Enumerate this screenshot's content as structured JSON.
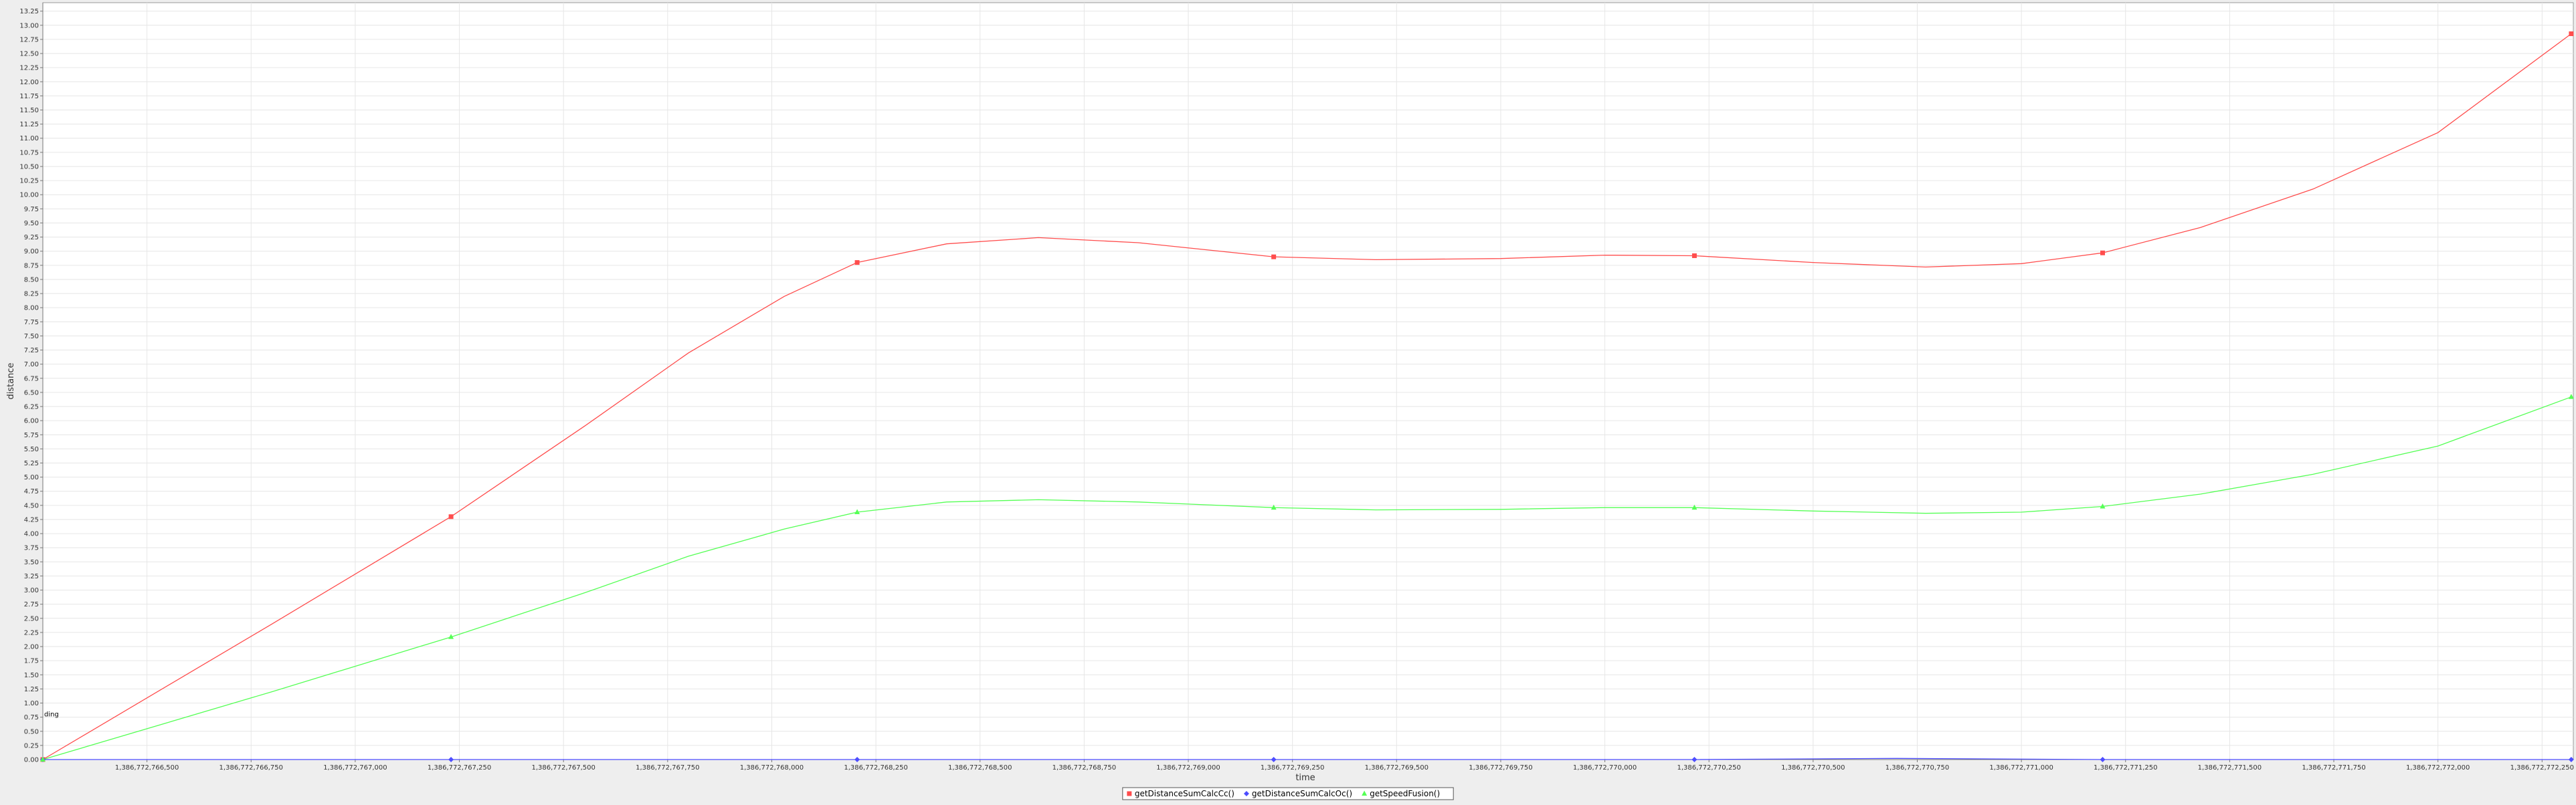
{
  "chart_data": {
    "type": "line",
    "title": "",
    "xlabel": "time",
    "ylabel": "distance",
    "xlim": [
      1386772766250,
      1386772772325
    ],
    "ylim": [
      0,
      13.4
    ],
    "y_tick_step": 0.25,
    "x_ticks": [
      {
        "value": 1386772766500,
        "label": "1,386,772,766,500"
      },
      {
        "value": 1386772766750,
        "label": "1,386,772,766,750"
      },
      {
        "value": 1386772767000,
        "label": "1,386,772,767,000"
      },
      {
        "value": 1386772767250,
        "label": "1,386,772,767,250"
      },
      {
        "value": 1386772767500,
        "label": "1,386,772,767,500"
      },
      {
        "value": 1386772767750,
        "label": "1,386,772,767,750"
      },
      {
        "value": 1386772768000,
        "label": "1,386,772,768,000"
      },
      {
        "value": 1386772768250,
        "label": "1,386,772,768,250"
      },
      {
        "value": 1386772768500,
        "label": "1,386,772,768,500"
      },
      {
        "value": 1386772768750,
        "label": "1,386,772,768,750"
      },
      {
        "value": 1386772769000,
        "label": "1,386,772,769,000"
      },
      {
        "value": 1386772769250,
        "label": "1,386,772,769,250"
      },
      {
        "value": 1386772769500,
        "label": "1,386,772,769,500"
      },
      {
        "value": 1386772769750,
        "label": "1,386,772,769,750"
      },
      {
        "value": 1386772770000,
        "label": "1,386,772,770,000"
      },
      {
        "value": 1386772770250,
        "label": "1,386,772,770,250"
      },
      {
        "value": 1386772770500,
        "label": "1,386,772,770,500"
      },
      {
        "value": 1386772770750,
        "label": "1,386,772,770,750"
      },
      {
        "value": 1386772771000,
        "label": "1,386,772,771,000"
      },
      {
        "value": 1386772771250,
        "label": "1,386,772,771,250"
      },
      {
        "value": 1386772771500,
        "label": "1,386,772,771,500"
      },
      {
        "value": 1386772771750,
        "label": "1,386,772,771,750"
      },
      {
        "value": 1386772772000,
        "label": "1,386,772,772,000"
      },
      {
        "value": 1386772772250,
        "label": "1,386,772,772,250"
      }
    ],
    "grid": true,
    "legend": "bottom-center",
    "annotation": "ding",
    "annotation_position": {
      "x": 1386772766250,
      "y": 0.8
    },
    "series": [
      {
        "name": "getDistanceSumCalcCc()",
        "color": "#ff4d4d",
        "marker": "square",
        "points": [
          [
            1386772766250,
            0
          ],
          [
            1386772767230,
            4.3
          ],
          [
            1386772768205,
            8.8
          ],
          [
            1386772769205,
            8.9
          ],
          [
            1386772770215,
            8.92
          ],
          [
            1386772771195,
            8.97
          ],
          [
            1386772772320,
            12.85
          ]
        ],
        "curve": [
          [
            1386772766250,
            0
          ],
          [
            1386772766800,
            2.4
          ],
          [
            1386772767230,
            4.3
          ],
          [
            1386772767550,
            5.9
          ],
          [
            1386772767800,
            7.2
          ],
          [
            1386772768030,
            8.2
          ],
          [
            1386772768205,
            8.8
          ],
          [
            1386772768420,
            9.13
          ],
          [
            1386772768640,
            9.24
          ],
          [
            1386772768880,
            9.15
          ],
          [
            1386772769205,
            8.9
          ],
          [
            1386772769450,
            8.85
          ],
          [
            1386772769750,
            8.87
          ],
          [
            1386772770000,
            8.93
          ],
          [
            1386772770215,
            8.92
          ],
          [
            1386772770500,
            8.8
          ],
          [
            1386772770770,
            8.72
          ],
          [
            1386772771000,
            8.78
          ],
          [
            1386772771195,
            8.97
          ],
          [
            1386772771430,
            9.42
          ],
          [
            1386772771700,
            10.1
          ],
          [
            1386772772000,
            11.1
          ],
          [
            1386772772320,
            12.85
          ]
        ]
      },
      {
        "name": "getDistanceSumCalcOc()",
        "color": "#4d4dff",
        "marker": "diamond",
        "points": [
          [
            1386772766250,
            0
          ],
          [
            1386772767230,
            0
          ],
          [
            1386772768205,
            0
          ],
          [
            1386772769205,
            0
          ],
          [
            1386772770215,
            0
          ],
          [
            1386772771195,
            0
          ],
          [
            1386772772320,
            0
          ]
        ],
        "curve": [
          [
            1386772766250,
            0
          ],
          [
            1386772767230,
            0
          ],
          [
            1386772768205,
            0
          ],
          [
            1386772769205,
            0
          ],
          [
            1386772770215,
            0
          ],
          [
            1386772770700,
            0.02
          ],
          [
            1386772771195,
            0
          ],
          [
            1386772772320,
            0
          ]
        ]
      },
      {
        "name": "getSpeedFusion()",
        "color": "#55ff55",
        "marker": "triangle",
        "points": [
          [
            1386772766250,
            0
          ],
          [
            1386772767230,
            2.17
          ],
          [
            1386772768205,
            4.38
          ],
          [
            1386772769205,
            4.46
          ],
          [
            1386772770215,
            4.46
          ],
          [
            1386772771195,
            4.48
          ],
          [
            1386772772320,
            6.42
          ]
        ],
        "curve": [
          [
            1386772766250,
            0
          ],
          [
            1386772766800,
            1.2
          ],
          [
            1386772767230,
            2.17
          ],
          [
            1386772767550,
            2.95
          ],
          [
            1386772767800,
            3.6
          ],
          [
            1386772768030,
            4.08
          ],
          [
            1386772768205,
            4.38
          ],
          [
            1386772768420,
            4.56
          ],
          [
            1386772768640,
            4.6
          ],
          [
            1386772768880,
            4.56
          ],
          [
            1386772769205,
            4.46
          ],
          [
            1386772769450,
            4.42
          ],
          [
            1386772769750,
            4.43
          ],
          [
            1386772770000,
            4.46
          ],
          [
            1386772770215,
            4.46
          ],
          [
            1386772770500,
            4.4
          ],
          [
            1386772770770,
            4.36
          ],
          [
            1386772771000,
            4.38
          ],
          [
            1386772771195,
            4.48
          ],
          [
            1386772771430,
            4.7
          ],
          [
            1386772771700,
            5.05
          ],
          [
            1386772772000,
            5.55
          ],
          [
            1386772772320,
            6.42
          ]
        ]
      }
    ]
  }
}
